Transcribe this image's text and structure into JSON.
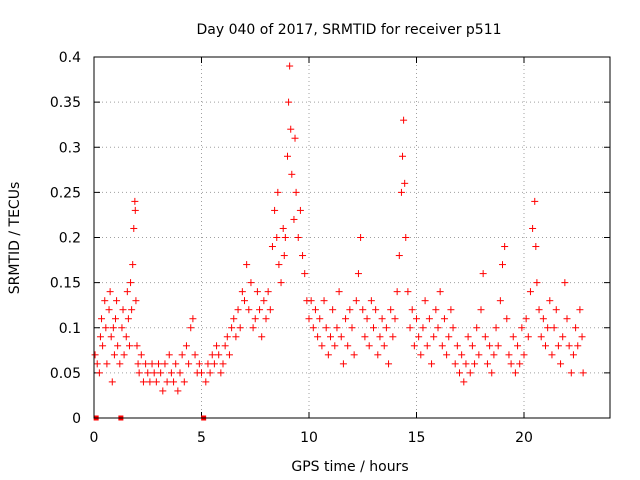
{
  "chart_data": {
    "type": "scatter",
    "title": "Day 040 of 2017, SRMTID for receiver p511",
    "xlabel": "GPS time / hours",
    "ylabel": "SRMTID / TECUs",
    "xlim": [
      0,
      24
    ],
    "ylim": [
      0,
      0.4
    ],
    "xticks": [
      0,
      5,
      10,
      15,
      20
    ],
    "xtick_labels": [
      "0",
      "5",
      "10",
      "15",
      "20"
    ],
    "yticks": [
      0,
      0.05,
      0.1,
      0.15,
      0.2,
      0.25,
      0.3,
      0.35,
      0.4
    ],
    "ytick_labels": [
      "0",
      "0.05",
      "0.1",
      "0.15",
      "0.2",
      "0.25",
      "0.3",
      "0.35",
      "0.4"
    ],
    "grid": true,
    "marker": "+",
    "series_color": "#ff0000",
    "zero_markers_x": [
      0.1,
      1.25,
      5.1
    ],
    "series": [
      {
        "name": "SRMTID",
        "points": [
          [
            0.05,
            0.07
          ],
          [
            0.15,
            0.06
          ],
          [
            0.25,
            0.05
          ],
          [
            0.3,
            0.09
          ],
          [
            0.35,
            0.11
          ],
          [
            0.4,
            0.08
          ],
          [
            0.5,
            0.13
          ],
          [
            0.55,
            0.1
          ],
          [
            0.6,
            0.06
          ],
          [
            0.7,
            0.12
          ],
          [
            0.75,
            0.14
          ],
          [
            0.8,
            0.09
          ],
          [
            0.85,
            0.04
          ],
          [
            0.9,
            0.1
          ],
          [
            0.95,
            0.07
          ],
          [
            1.0,
            0.11
          ],
          [
            1.05,
            0.13
          ],
          [
            1.1,
            0.08
          ],
          [
            1.2,
            0.06
          ],
          [
            1.3,
            0.1
          ],
          [
            1.35,
            0.12
          ],
          [
            1.4,
            0.07
          ],
          [
            1.5,
            0.09
          ],
          [
            1.55,
            0.14
          ],
          [
            1.6,
            0.11
          ],
          [
            1.65,
            0.08
          ],
          [
            1.7,
            0.15
          ],
          [
            1.75,
            0.12
          ],
          [
            1.8,
            0.17
          ],
          [
            1.85,
            0.21
          ],
          [
            1.9,
            0.24
          ],
          [
            1.92,
            0.23
          ],
          [
            1.95,
            0.13
          ],
          [
            2.0,
            0.08
          ],
          [
            2.05,
            0.06
          ],
          [
            2.1,
            0.05
          ],
          [
            2.2,
            0.07
          ],
          [
            2.3,
            0.04
          ],
          [
            2.4,
            0.06
          ],
          [
            2.5,
            0.05
          ],
          [
            2.6,
            0.04
          ],
          [
            2.7,
            0.06
          ],
          [
            2.8,
            0.05
          ],
          [
            2.9,
            0.04
          ],
          [
            3.0,
            0.06
          ],
          [
            3.1,
            0.05
          ],
          [
            3.2,
            0.03
          ],
          [
            3.3,
            0.06
          ],
          [
            3.4,
            0.04
          ],
          [
            3.5,
            0.07
          ],
          [
            3.6,
            0.05
          ],
          [
            3.7,
            0.04
          ],
          [
            3.8,
            0.06
          ],
          [
            3.9,
            0.03
          ],
          [
            4.0,
            0.05
          ],
          [
            4.1,
            0.07
          ],
          [
            4.2,
            0.04
          ],
          [
            4.3,
            0.08
          ],
          [
            4.4,
            0.06
          ],
          [
            4.5,
            0.1
          ],
          [
            4.6,
            0.11
          ],
          [
            4.7,
            0.07
          ],
          [
            4.8,
            0.05
          ],
          [
            4.9,
            0.06
          ],
          [
            5.0,
            0.05
          ],
          [
            5.2,
            0.04
          ],
          [
            5.3,
            0.06
          ],
          [
            5.4,
            0.05
          ],
          [
            5.5,
            0.07
          ],
          [
            5.6,
            0.06
          ],
          [
            5.7,
            0.08
          ],
          [
            5.8,
            0.07
          ],
          [
            5.9,
            0.05
          ],
          [
            6.0,
            0.06
          ],
          [
            6.1,
            0.08
          ],
          [
            6.2,
            0.09
          ],
          [
            6.3,
            0.07
          ],
          [
            6.4,
            0.1
          ],
          [
            6.5,
            0.11
          ],
          [
            6.6,
            0.09
          ],
          [
            6.7,
            0.12
          ],
          [
            6.8,
            0.1
          ],
          [
            6.9,
            0.14
          ],
          [
            7.0,
            0.13
          ],
          [
            7.1,
            0.17
          ],
          [
            7.2,
            0.12
          ],
          [
            7.3,
            0.15
          ],
          [
            7.4,
            0.1
          ],
          [
            7.5,
            0.11
          ],
          [
            7.6,
            0.14
          ],
          [
            7.7,
            0.12
          ],
          [
            7.8,
            0.09
          ],
          [
            7.9,
            0.13
          ],
          [
            8.0,
            0.11
          ],
          [
            8.1,
            0.14
          ],
          [
            8.2,
            0.12
          ],
          [
            8.3,
            0.19
          ],
          [
            8.4,
            0.23
          ],
          [
            8.5,
            0.2
          ],
          [
            8.55,
            0.25
          ],
          [
            8.6,
            0.17
          ],
          [
            8.7,
            0.15
          ],
          [
            8.8,
            0.21
          ],
          [
            8.85,
            0.18
          ],
          [
            8.9,
            0.2
          ],
          [
            9.0,
            0.29
          ],
          [
            9.05,
            0.35
          ],
          [
            9.1,
            0.39
          ],
          [
            9.15,
            0.32
          ],
          [
            9.2,
            0.27
          ],
          [
            9.3,
            0.22
          ],
          [
            9.35,
            0.31
          ],
          [
            9.4,
            0.25
          ],
          [
            9.5,
            0.2
          ],
          [
            9.6,
            0.23
          ],
          [
            9.7,
            0.18
          ],
          [
            9.8,
            0.16
          ],
          [
            9.9,
            0.13
          ],
          [
            10.0,
            0.11
          ],
          [
            10.1,
            0.13
          ],
          [
            10.2,
            0.1
          ],
          [
            10.3,
            0.12
          ],
          [
            10.4,
            0.09
          ],
          [
            10.5,
            0.11
          ],
          [
            10.6,
            0.08
          ],
          [
            10.7,
            0.13
          ],
          [
            10.8,
            0.1
          ],
          [
            10.9,
            0.07
          ],
          [
            11.0,
            0.09
          ],
          [
            11.1,
            0.12
          ],
          [
            11.2,
            0.08
          ],
          [
            11.3,
            0.1
          ],
          [
            11.4,
            0.14
          ],
          [
            11.5,
            0.09
          ],
          [
            11.6,
            0.06
          ],
          [
            11.7,
            0.11
          ],
          [
            11.8,
            0.08
          ],
          [
            11.9,
            0.12
          ],
          [
            12.0,
            0.1
          ],
          [
            12.1,
            0.07
          ],
          [
            12.2,
            0.13
          ],
          [
            12.3,
            0.16
          ],
          [
            12.4,
            0.2
          ],
          [
            12.5,
            0.12
          ],
          [
            12.6,
            0.09
          ],
          [
            12.7,
            0.11
          ],
          [
            12.8,
            0.08
          ],
          [
            12.9,
            0.13
          ],
          [
            13.0,
            0.1
          ],
          [
            13.1,
            0.12
          ],
          [
            13.2,
            0.07
          ],
          [
            13.3,
            0.09
          ],
          [
            13.4,
            0.11
          ],
          [
            13.5,
            0.08
          ],
          [
            13.6,
            0.1
          ],
          [
            13.7,
            0.06
          ],
          [
            13.8,
            0.12
          ],
          [
            13.9,
            0.09
          ],
          [
            14.0,
            0.11
          ],
          [
            14.1,
            0.14
          ],
          [
            14.2,
            0.18
          ],
          [
            14.3,
            0.25
          ],
          [
            14.35,
            0.29
          ],
          [
            14.4,
            0.33
          ],
          [
            14.45,
            0.26
          ],
          [
            14.5,
            0.2
          ],
          [
            14.6,
            0.14
          ],
          [
            14.7,
            0.1
          ],
          [
            14.8,
            0.12
          ],
          [
            14.9,
            0.08
          ],
          [
            15.0,
            0.11
          ],
          [
            15.1,
            0.09
          ],
          [
            15.2,
            0.07
          ],
          [
            15.3,
            0.1
          ],
          [
            15.4,
            0.13
          ],
          [
            15.5,
            0.08
          ],
          [
            15.6,
            0.11
          ],
          [
            15.7,
            0.06
          ],
          [
            15.8,
            0.09
          ],
          [
            15.9,
            0.12
          ],
          [
            16.0,
            0.1
          ],
          [
            16.1,
            0.14
          ],
          [
            16.2,
            0.08
          ],
          [
            16.3,
            0.11
          ],
          [
            16.4,
            0.07
          ],
          [
            16.5,
            0.09
          ],
          [
            16.6,
            0.12
          ],
          [
            16.7,
            0.1
          ],
          [
            16.8,
            0.06
          ],
          [
            16.9,
            0.08
          ],
          [
            17.0,
            0.05
          ],
          [
            17.1,
            0.07
          ],
          [
            17.2,
            0.04
          ],
          [
            17.3,
            0.06
          ],
          [
            17.4,
            0.09
          ],
          [
            17.5,
            0.05
          ],
          [
            17.6,
            0.08
          ],
          [
            17.7,
            0.06
          ],
          [
            17.8,
            0.1
          ],
          [
            17.9,
            0.07
          ],
          [
            18.0,
            0.12
          ],
          [
            18.1,
            0.16
          ],
          [
            18.2,
            0.09
          ],
          [
            18.3,
            0.06
          ],
          [
            18.4,
            0.08
          ],
          [
            18.5,
            0.05
          ],
          [
            18.6,
            0.07
          ],
          [
            18.7,
            0.1
          ],
          [
            18.8,
            0.08
          ],
          [
            18.9,
            0.13
          ],
          [
            19.0,
            0.17
          ],
          [
            19.1,
            0.19
          ],
          [
            19.2,
            0.11
          ],
          [
            19.3,
            0.07
          ],
          [
            19.4,
            0.06
          ],
          [
            19.5,
            0.09
          ],
          [
            19.6,
            0.05
          ],
          [
            19.7,
            0.08
          ],
          [
            19.8,
            0.06
          ],
          [
            19.9,
            0.1
          ],
          [
            20.0,
            0.07
          ],
          [
            20.1,
            0.11
          ],
          [
            20.2,
            0.09
          ],
          [
            20.3,
            0.14
          ],
          [
            20.4,
            0.21
          ],
          [
            20.5,
            0.24
          ],
          [
            20.55,
            0.19
          ],
          [
            20.6,
            0.15
          ],
          [
            20.7,
            0.12
          ],
          [
            20.8,
            0.09
          ],
          [
            20.9,
            0.11
          ],
          [
            21.0,
            0.08
          ],
          [
            21.1,
            0.1
          ],
          [
            21.2,
            0.13
          ],
          [
            21.3,
            0.07
          ],
          [
            21.4,
            0.1
          ],
          [
            21.5,
            0.12
          ],
          [
            21.6,
            0.08
          ],
          [
            21.7,
            0.06
          ],
          [
            21.8,
            0.09
          ],
          [
            21.9,
            0.15
          ],
          [
            22.0,
            0.11
          ],
          [
            22.1,
            0.08
          ],
          [
            22.2,
            0.05
          ],
          [
            22.3,
            0.07
          ],
          [
            22.4,
            0.1
          ],
          [
            22.5,
            0.08
          ],
          [
            22.6,
            0.12
          ],
          [
            22.7,
            0.09
          ],
          [
            22.75,
            0.05
          ]
        ]
      }
    ]
  }
}
